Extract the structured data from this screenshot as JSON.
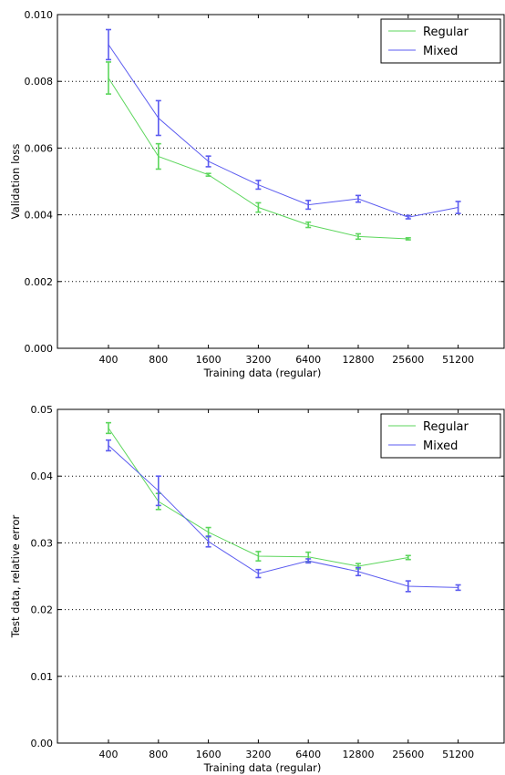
{
  "colors": {
    "regular": "#5cd65c",
    "mixed": "#5b5bf0",
    "grid": "#000000",
    "axis": "#000000"
  },
  "chart_data": [
    {
      "type": "line",
      "xlabel": "Training data (regular)",
      "ylabel": "Validation loss",
      "x_scale": "log2",
      "categories": [
        "400",
        "800",
        "1600",
        "3200",
        "6400",
        "12800",
        "25600",
        "51200"
      ],
      "x": [
        400,
        800,
        1600,
        3200,
        6400,
        12800,
        25600,
        51200
      ],
      "ylim": [
        0,
        0.01
      ],
      "yticks": [
        "0.000",
        "0.002",
        "0.004",
        "0.006",
        "0.008",
        "0.010"
      ],
      "grid": "horizontal dotted",
      "legend": "top-right",
      "series": [
        {
          "name": "Regular",
          "color": "regular",
          "x": [
            400,
            800,
            1600,
            3200,
            6400,
            12800,
            25600
          ],
          "values": [
            0.0081,
            0.00575,
            0.0052,
            0.00422,
            0.0037,
            0.00335,
            0.00328
          ],
          "errors": [
            0.00048,
            0.00038,
            4e-05,
            0.00014,
            8e-05,
            8e-05,
            3e-05
          ]
        },
        {
          "name": "Mixed",
          "color": "mixed",
          "x": [
            400,
            800,
            1600,
            3200,
            6400,
            12800,
            25600,
            51200
          ],
          "values": [
            0.0091,
            0.0069,
            0.0056,
            0.0049,
            0.0043,
            0.00448,
            0.00393,
            0.00422
          ],
          "errors": [
            0.00045,
            0.00052,
            0.00016,
            0.00013,
            0.00013,
            0.0001,
            5e-05,
            0.00018
          ]
        }
      ]
    },
    {
      "type": "line",
      "xlabel": "Training data (regular)",
      "ylabel": "Test data, relative error",
      "x_scale": "log2",
      "categories": [
        "400",
        "800",
        "1600",
        "3200",
        "6400",
        "12800",
        "25600",
        "51200"
      ],
      "x": [
        400,
        800,
        1600,
        3200,
        6400,
        12800,
        25600,
        51200
      ],
      "ylim": [
        0,
        0.05
      ],
      "yticks": [
        "0.00",
        "0.01",
        "0.02",
        "0.03",
        "0.04",
        "0.05"
      ],
      "grid": "horizontal dotted",
      "legend": "top-right",
      "series": [
        {
          "name": "Regular",
          "color": "regular",
          "x": [
            400,
            800,
            1600,
            3200,
            6400,
            12800,
            25600
          ],
          "values": [
            0.0472,
            0.0362,
            0.0316,
            0.028,
            0.0279,
            0.0265,
            0.0278
          ],
          "errors": [
            0.0008,
            0.0012,
            0.0007,
            0.0007,
            0.0007,
            0.0004,
            0.0003
          ]
        },
        {
          "name": "Mixed",
          "color": "mixed",
          "x": [
            400,
            800,
            1600,
            3200,
            6400,
            12800,
            25600,
            51200
          ],
          "values": [
            0.0446,
            0.0378,
            0.0302,
            0.0254,
            0.0273,
            0.0257,
            0.0235,
            0.0233
          ],
          "errors": [
            0.0008,
            0.0022,
            0.0008,
            0.0006,
            0.0003,
            0.0006,
            0.0008,
            0.0004
          ]
        }
      ]
    }
  ]
}
